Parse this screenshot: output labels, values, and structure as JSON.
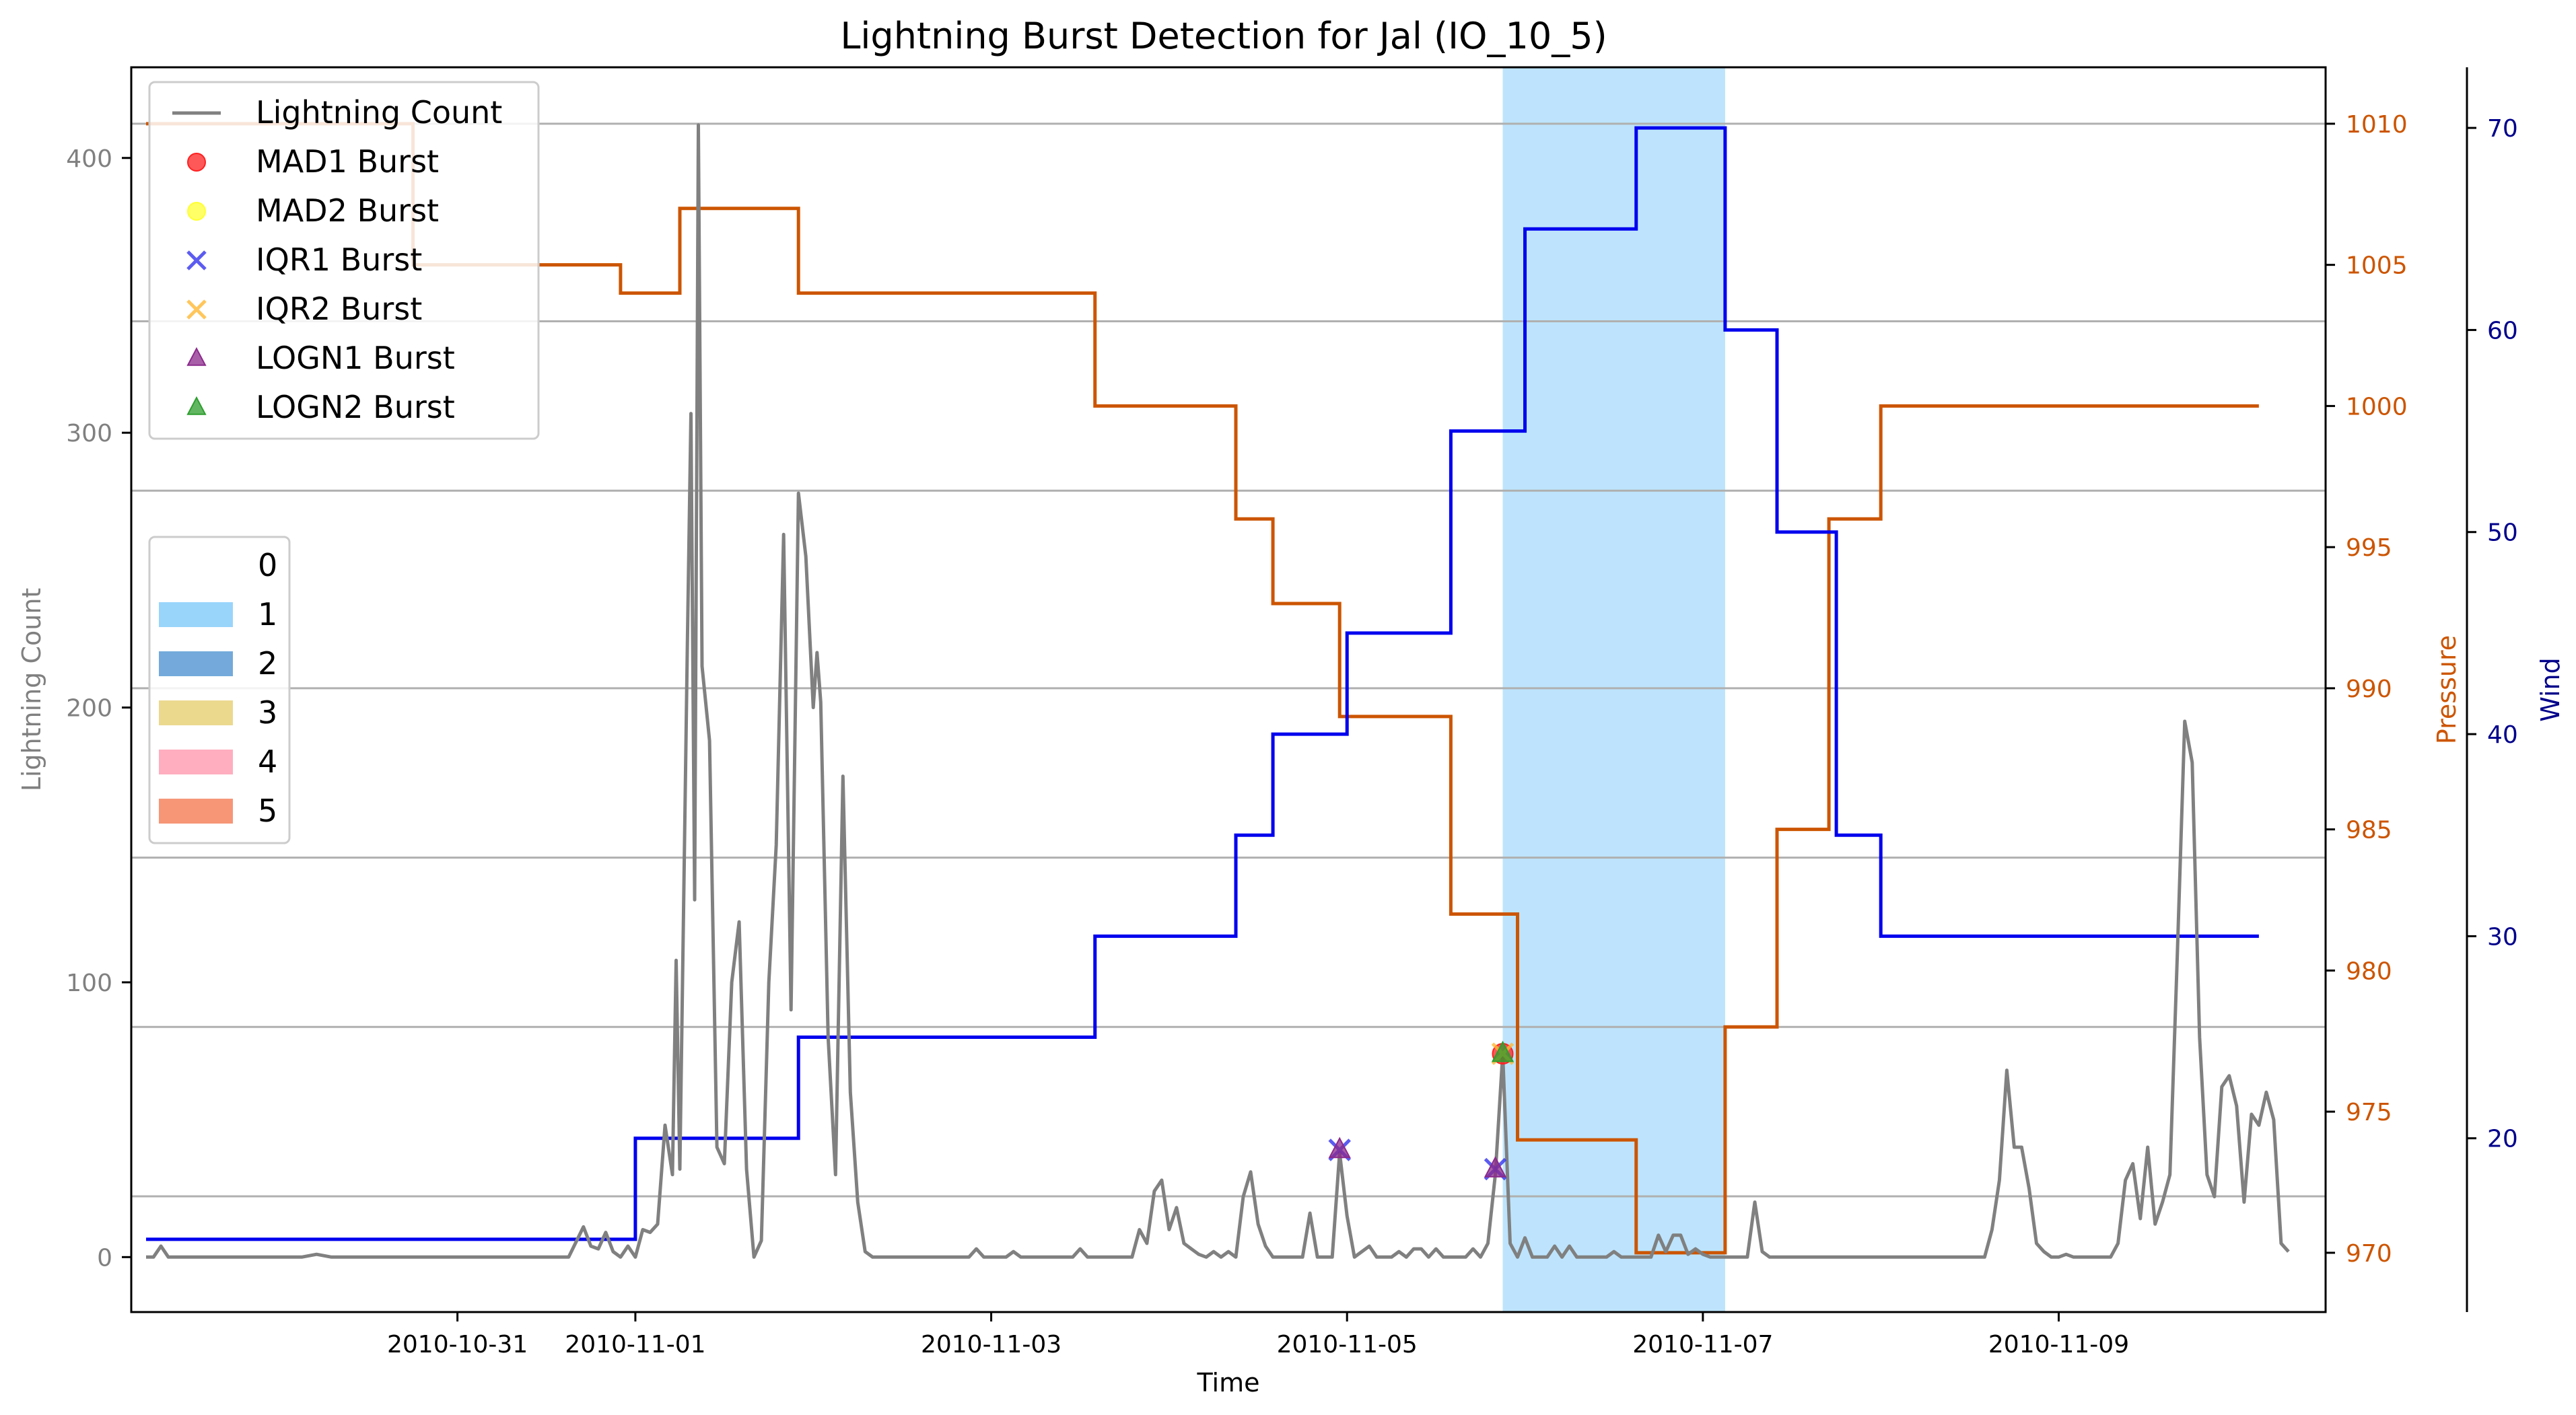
{
  "chart_data": {
    "type": "line",
    "title": "Lightning Burst Detection for Jal (IO_10_5)",
    "xlabel": "Time",
    "ylabel_left": "Lightning Count",
    "ylabel_pressure": "Pressure",
    "ylabel_wind": "Wind",
    "xlim": [
      "2010-10-29T04:00",
      "2010-11-10T12:00"
    ],
    "ylim_left": [
      -20,
      433
    ],
    "ylim_pressure": [
      967.9,
      1012.0
    ],
    "ylim_wind": [
      11.4,
      73.0
    ],
    "x_ticks": [
      "2010-10-31",
      "2010-11-01",
      "2010-11-03",
      "2010-11-05",
      "2010-11-07",
      "2010-11-09"
    ],
    "y_ticks_left": [
      0,
      100,
      200,
      300,
      400
    ],
    "y_ticks_pressure": [
      970,
      975,
      980,
      985,
      990,
      995,
      1000,
      1005,
      1010
    ],
    "y_ticks_wind": [
      20,
      30,
      40,
      50,
      60,
      70
    ],
    "grid_pressure_levels": [
      972,
      978,
      984,
      990,
      997,
      1003,
      1010
    ],
    "colors": {
      "lightning": "#808080",
      "pressure": "#cc5500",
      "wind": "#0000ee",
      "category_1": "#87cefa",
      "category_2": "#5b9bd5",
      "category_3": "#e8d27a",
      "category_4": "#ffa0b4",
      "category_5": "#f4845f",
      "left_axis_text": "#808080",
      "pressure_axis_text": "#cc5500",
      "wind_axis_text": "#00008b"
    },
    "legend_series": [
      {
        "label": "Lightning Count",
        "marker": "line",
        "color": "#808080"
      },
      {
        "label": "MAD1 Burst",
        "marker": "circle",
        "color": "#ff2020"
      },
      {
        "label": "MAD2 Burst",
        "marker": "circle",
        "color": "#ffff33"
      },
      {
        "label": "IQR1 Burst",
        "marker": "x",
        "color": "#3333ee"
      },
      {
        "label": "IQR2 Burst",
        "marker": "x",
        "color": "#ffb833"
      },
      {
        "label": "LOGN1 Burst",
        "marker": "triangle",
        "color": "#8b2a8b"
      },
      {
        "label": "LOGN2 Burst",
        "marker": "triangle",
        "color": "#2e9e2e"
      }
    ],
    "legend_categories": [
      {
        "label": "0",
        "color": "none"
      },
      {
        "label": "1",
        "color": "#87cefa"
      },
      {
        "label": "2",
        "color": "#5b9bd5"
      },
      {
        "label": "3",
        "color": "#e8d27a"
      },
      {
        "label": "4",
        "color": "#ffa0b4"
      },
      {
        "label": "5",
        "color": "#f4845f"
      }
    ],
    "category_spans": [
      {
        "category": 1,
        "start": "2010-11-05T21:00",
        "end": "2010-11-07T03:00"
      }
    ],
    "pressure_steps": [
      [
        "2010-10-29T06:00",
        1010
      ],
      [
        "2010-10-30T18:00",
        1005
      ],
      [
        "2010-10-31T22:00",
        1004
      ],
      [
        "2010-11-01T06:00",
        1007
      ],
      [
        "2010-11-01T22:00",
        1004
      ],
      [
        "2010-11-03T14:00",
        1000
      ],
      [
        "2010-11-04T09:00",
        996
      ],
      [
        "2010-11-04T14:00",
        993
      ],
      [
        "2010-11-04T23:00",
        989
      ],
      [
        "2010-11-05T14:00",
        982
      ],
      [
        "2010-11-05T23:00",
        974
      ],
      [
        "2010-11-06T15:00",
        970
      ],
      [
        "2010-11-07T03:00",
        978
      ],
      [
        "2010-11-07T10:00",
        985
      ],
      [
        "2010-11-07T17:00",
        996
      ],
      [
        "2010-11-08T00:00",
        1000
      ],
      [
        "2010-11-10T03:00",
        1000
      ]
    ],
    "wind_steps": [
      [
        "2010-10-29T06:00",
        15
      ],
      [
        "2010-11-01T00:00",
        20
      ],
      [
        "2010-11-01T22:00",
        25
      ],
      [
        "2010-11-03T14:00",
        30
      ],
      [
        "2010-11-04T09:00",
        35
      ],
      [
        "2010-11-04T14:00",
        40
      ],
      [
        "2010-11-05T00:00",
        45
      ],
      [
        "2010-11-05T14:00",
        55
      ],
      [
        "2010-11-06T00:00",
        65
      ],
      [
        "2010-11-06T15:00",
        70
      ],
      [
        "2010-11-07T03:00",
        60
      ],
      [
        "2010-11-07T10:00",
        50
      ],
      [
        "2010-11-07T18:00",
        35
      ],
      [
        "2010-11-08T00:00",
        30
      ],
      [
        "2010-11-10T03:00",
        30
      ]
    ],
    "lightning_series": [
      [
        "2010-10-29T06:00",
        0
      ],
      [
        "2010-10-29T07:00",
        0
      ],
      [
        "2010-10-29T08:00",
        4
      ],
      [
        "2010-10-29T09:00",
        0
      ],
      [
        "2010-10-30T03:00",
        0
      ],
      [
        "2010-10-30T05:00",
        1
      ],
      [
        "2010-10-30T07:00",
        0
      ],
      [
        "2010-10-31T15:00",
        0
      ],
      [
        "2010-10-31T17:00",
        11
      ],
      [
        "2010-10-31T18:00",
        4
      ],
      [
        "2010-10-31T19:00",
        3
      ],
      [
        "2010-10-31T20:00",
        9
      ],
      [
        "2010-10-31T21:00",
        2
      ],
      [
        "2010-10-31T22:00",
        0
      ],
      [
        "2010-10-31T23:00",
        4
      ],
      [
        "2010-11-01T00:00",
        0
      ],
      [
        "2010-11-01T01:00",
        10
      ],
      [
        "2010-11-01T02:00",
        9
      ],
      [
        "2010-11-01T03:00",
        12
      ],
      [
        "2010-11-01T04:00",
        48
      ],
      [
        "2010-11-01T05:00",
        30
      ],
      [
        "2010-11-01T05:30",
        108
      ],
      [
        "2010-11-01T06:00",
        32
      ],
      [
        "2010-11-01T07:00",
        220
      ],
      [
        "2010-11-01T07:30",
        307
      ],
      [
        "2010-11-01T08:00",
        130
      ],
      [
        "2010-11-01T08:30",
        412
      ],
      [
        "2010-11-01T09:00",
        215
      ],
      [
        "2010-11-01T10:00",
        188
      ],
      [
        "2010-11-01T11:00",
        40
      ],
      [
        "2010-11-01T12:00",
        34
      ],
      [
        "2010-11-01T13:00",
        100
      ],
      [
        "2010-11-01T14:00",
        122
      ],
      [
        "2010-11-01T15:00",
        32
      ],
      [
        "2010-11-01T16:00",
        0
      ],
      [
        "2010-11-01T17:00",
        6
      ],
      [
        "2010-11-01T18:00",
        100
      ],
      [
        "2010-11-01T19:00",
        150
      ],
      [
        "2010-11-01T20:00",
        263
      ],
      [
        "2010-11-01T21:00",
        90
      ],
      [
        "2010-11-01T22:00",
        278
      ],
      [
        "2010-11-01T23:00",
        255
      ],
      [
        "2010-11-02T00:00",
        200
      ],
      [
        "2010-11-02T00:30",
        220
      ],
      [
        "2010-11-02T01:00",
        202
      ],
      [
        "2010-11-02T02:00",
        80
      ],
      [
        "2010-11-02T03:00",
        30
      ],
      [
        "2010-11-02T04:00",
        175
      ],
      [
        "2010-11-02T05:00",
        60
      ],
      [
        "2010-11-02T06:00",
        20
      ],
      [
        "2010-11-02T07:00",
        2
      ],
      [
        "2010-11-02T08:00",
        0
      ],
      [
        "2010-11-02T21:00",
        0
      ],
      [
        "2010-11-02T22:00",
        3
      ],
      [
        "2010-11-02T23:00",
        0
      ],
      [
        "2010-11-03T02:00",
        0
      ],
      [
        "2010-11-03T03:00",
        2
      ],
      [
        "2010-11-03T04:00",
        0
      ],
      [
        "2010-11-03T11:00",
        0
      ],
      [
        "2010-11-03T12:00",
        3
      ],
      [
        "2010-11-03T13:00",
        0
      ],
      [
        "2010-11-03T19:00",
        0
      ],
      [
        "2010-11-03T20:00",
        10
      ],
      [
        "2010-11-03T21:00",
        5
      ],
      [
        "2010-11-03T22:00",
        24
      ],
      [
        "2010-11-03T23:00",
        28
      ],
      [
        "2010-11-04T00:00",
        10
      ],
      [
        "2010-11-04T01:00",
        18
      ],
      [
        "2010-11-04T02:00",
        5
      ],
      [
        "2010-11-04T03:00",
        3
      ],
      [
        "2010-11-04T04:00",
        1
      ],
      [
        "2010-11-04T05:00",
        0
      ],
      [
        "2010-11-04T06:00",
        2
      ],
      [
        "2010-11-04T07:00",
        0
      ],
      [
        "2010-11-04T08:00",
        2
      ],
      [
        "2010-11-04T09:00",
        0
      ],
      [
        "2010-11-04T10:00",
        22
      ],
      [
        "2010-11-04T11:00",
        31
      ],
      [
        "2010-11-04T12:00",
        12
      ],
      [
        "2010-11-04T13:00",
        4
      ],
      [
        "2010-11-04T14:00",
        0
      ],
      [
        "2010-11-04T18:00",
        0
      ],
      [
        "2010-11-04T19:00",
        16
      ],
      [
        "2010-11-04T20:00",
        0
      ],
      [
        "2010-11-04T22:00",
        0
      ],
      [
        "2010-11-04T23:00",
        38
      ],
      [
        "2010-11-05T00:00",
        15
      ],
      [
        "2010-11-05T01:00",
        0
      ],
      [
        "2010-11-05T02:00",
        2
      ],
      [
        "2010-11-05T03:00",
        4
      ],
      [
        "2010-11-05T04:00",
        0
      ],
      [
        "2010-11-05T06:00",
        0
      ],
      [
        "2010-11-05T07:00",
        2
      ],
      [
        "2010-11-05T08:00",
        0
      ],
      [
        "2010-11-05T09:00",
        3
      ],
      [
        "2010-11-05T10:00",
        3
      ],
      [
        "2010-11-05T11:00",
        0
      ],
      [
        "2010-11-05T12:00",
        3
      ],
      [
        "2010-11-05T13:00",
        0
      ],
      [
        "2010-11-05T16:00",
        0
      ],
      [
        "2010-11-05T17:00",
        3
      ],
      [
        "2010-11-05T18:00",
        0
      ],
      [
        "2010-11-05T19:00",
        5
      ],
      [
        "2010-11-05T20:00",
        30
      ],
      [
        "2010-11-05T21:00",
        74
      ],
      [
        "2010-11-05T22:00",
        5
      ],
      [
        "2010-11-05T23:00",
        0
      ],
      [
        "2010-11-06T00:00",
        7
      ],
      [
        "2010-11-06T01:00",
        0
      ],
      [
        "2010-11-06T03:00",
        0
      ],
      [
        "2010-11-06T04:00",
        4
      ],
      [
        "2010-11-06T05:00",
        0
      ],
      [
        "2010-11-06T06:00",
        4
      ],
      [
        "2010-11-06T07:00",
        0
      ],
      [
        "2010-11-06T11:00",
        0
      ],
      [
        "2010-11-06T12:00",
        2
      ],
      [
        "2010-11-06T13:00",
        0
      ],
      [
        "2010-11-06T17:00",
        0
      ],
      [
        "2010-11-06T18:00",
        8
      ],
      [
        "2010-11-06T19:00",
        2
      ],
      [
        "2010-11-06T20:00",
        8
      ],
      [
        "2010-11-06T21:00",
        8
      ],
      [
        "2010-11-06T22:00",
        1
      ],
      [
        "2010-11-06T23:00",
        3
      ],
      [
        "2010-11-07T00:00",
        1
      ],
      [
        "2010-11-07T01:00",
        0
      ],
      [
        "2010-11-07T06:00",
        0
      ],
      [
        "2010-11-07T07:00",
        20
      ],
      [
        "2010-11-07T08:00",
        2
      ],
      [
        "2010-11-07T09:00",
        0
      ],
      [
        "2010-11-08T14:00",
        0
      ],
      [
        "2010-11-08T15:00",
        10
      ],
      [
        "2010-11-08T16:00",
        28
      ],
      [
        "2010-11-08T17:00",
        68
      ],
      [
        "2010-11-08T18:00",
        40
      ],
      [
        "2010-11-08T19:00",
        40
      ],
      [
        "2010-11-08T20:00",
        25
      ],
      [
        "2010-11-08T21:00",
        5
      ],
      [
        "2010-11-08T22:00",
        2
      ],
      [
        "2010-11-08T23:00",
        0
      ],
      [
        "2010-11-09T00:00",
        0
      ],
      [
        "2010-11-09T01:00",
        1
      ],
      [
        "2010-11-09T02:00",
        0
      ],
      [
        "2010-11-09T07:00",
        0
      ],
      [
        "2010-11-09T08:00",
        5
      ],
      [
        "2010-11-09T09:00",
        28
      ],
      [
        "2010-11-09T10:00",
        34
      ],
      [
        "2010-11-09T11:00",
        14
      ],
      [
        "2010-11-09T12:00",
        40
      ],
      [
        "2010-11-09T13:00",
        12
      ],
      [
        "2010-11-09T14:00",
        20
      ],
      [
        "2010-11-09T15:00",
        30
      ],
      [
        "2010-11-09T16:00",
        110
      ],
      [
        "2010-11-09T17:00",
        195
      ],
      [
        "2010-11-09T18:00",
        180
      ],
      [
        "2010-11-09T19:00",
        80
      ],
      [
        "2010-11-09T20:00",
        30
      ],
      [
        "2010-11-09T21:00",
        22
      ],
      [
        "2010-11-09T22:00",
        62
      ],
      [
        "2010-11-09T23:00",
        66
      ],
      [
        "2010-11-10T00:00",
        55
      ],
      [
        "2010-11-10T01:00",
        20
      ],
      [
        "2010-11-10T02:00",
        52
      ],
      [
        "2010-11-10T03:00",
        48
      ],
      [
        "2010-11-10T04:00",
        60
      ],
      [
        "2010-11-10T05:00",
        50
      ],
      [
        "2010-11-10T06:00",
        5
      ],
      [
        "2010-11-10T07:00",
        2
      ]
    ],
    "burst_markers": [
      {
        "series": "IQR1 Burst",
        "x": "2010-11-04T23:00",
        "y": 39
      },
      {
        "series": "LOGN1 Burst",
        "x": "2010-11-04T23:00",
        "y": 39
      },
      {
        "series": "IQR1 Burst",
        "x": "2010-11-05T20:00",
        "y": 32
      },
      {
        "series": "LOGN1 Burst",
        "x": "2010-11-05T20:00",
        "y": 32
      },
      {
        "series": "MAD1 Burst",
        "x": "2010-11-05T21:00",
        "y": 74
      },
      {
        "series": "IQR2 Burst",
        "x": "2010-11-05T21:00",
        "y": 74
      },
      {
        "series": "LOGN2 Burst",
        "x": "2010-11-05T21:00",
        "y": 74
      }
    ]
  }
}
